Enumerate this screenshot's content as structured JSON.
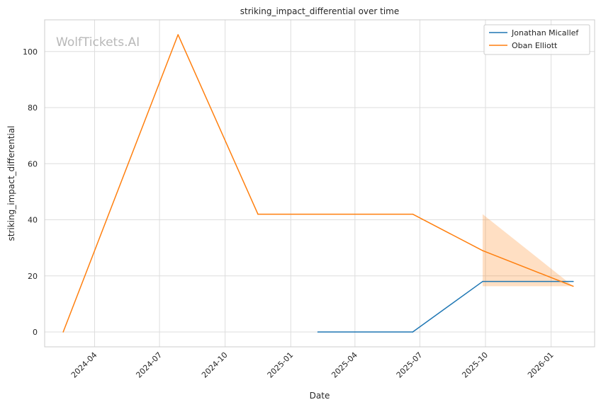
{
  "chart_data": {
    "type": "line",
    "title": "striking_impact_differential over time",
    "xlabel": "Date",
    "ylabel": "striking_impact_differential",
    "watermark": "WolfTickets.AI",
    "x_ticks": [
      "2024-04",
      "2024-07",
      "2024-10",
      "2025-01",
      "2025-04",
      "2025-07",
      "2025-10",
      "2026-01"
    ],
    "xlim": [
      "2024-01-22",
      "2026-03-03"
    ],
    "y_ticks": [
      0,
      20,
      40,
      60,
      80,
      100
    ],
    "ylim": [
      -5.3,
      111.3
    ],
    "grid": true,
    "legend_position": "top-right",
    "series": [
      {
        "name": "Jonathan Micallef",
        "color": "#1f77b4",
        "points": [
          {
            "x": "2025-02-08",
            "y": 0
          },
          {
            "x": "2025-06-21",
            "y": 0
          },
          {
            "x": "2025-09-27",
            "y": 18
          },
          {
            "x": "2026-02-01",
            "y": 18
          }
        ]
      },
      {
        "name": "Oban Elliott",
        "color": "#ff7f0e",
        "points": [
          {
            "x": "2024-02-17",
            "y": 0
          },
          {
            "x": "2024-07-27",
            "y": 106
          },
          {
            "x": "2024-11-16",
            "y": 42
          },
          {
            "x": "2025-06-21",
            "y": 42
          },
          {
            "x": "2025-09-27",
            "y": 29
          },
          {
            "x": "2026-02-01",
            "y": 16.3
          }
        ],
        "band": {
          "color": "#ff7f0e",
          "points": [
            {
              "x": "2025-09-27",
              "low": 16.3,
              "high": 42
            },
            {
              "x": "2026-02-01",
              "low": 16.3,
              "high": 16.3
            }
          ]
        }
      }
    ]
  }
}
